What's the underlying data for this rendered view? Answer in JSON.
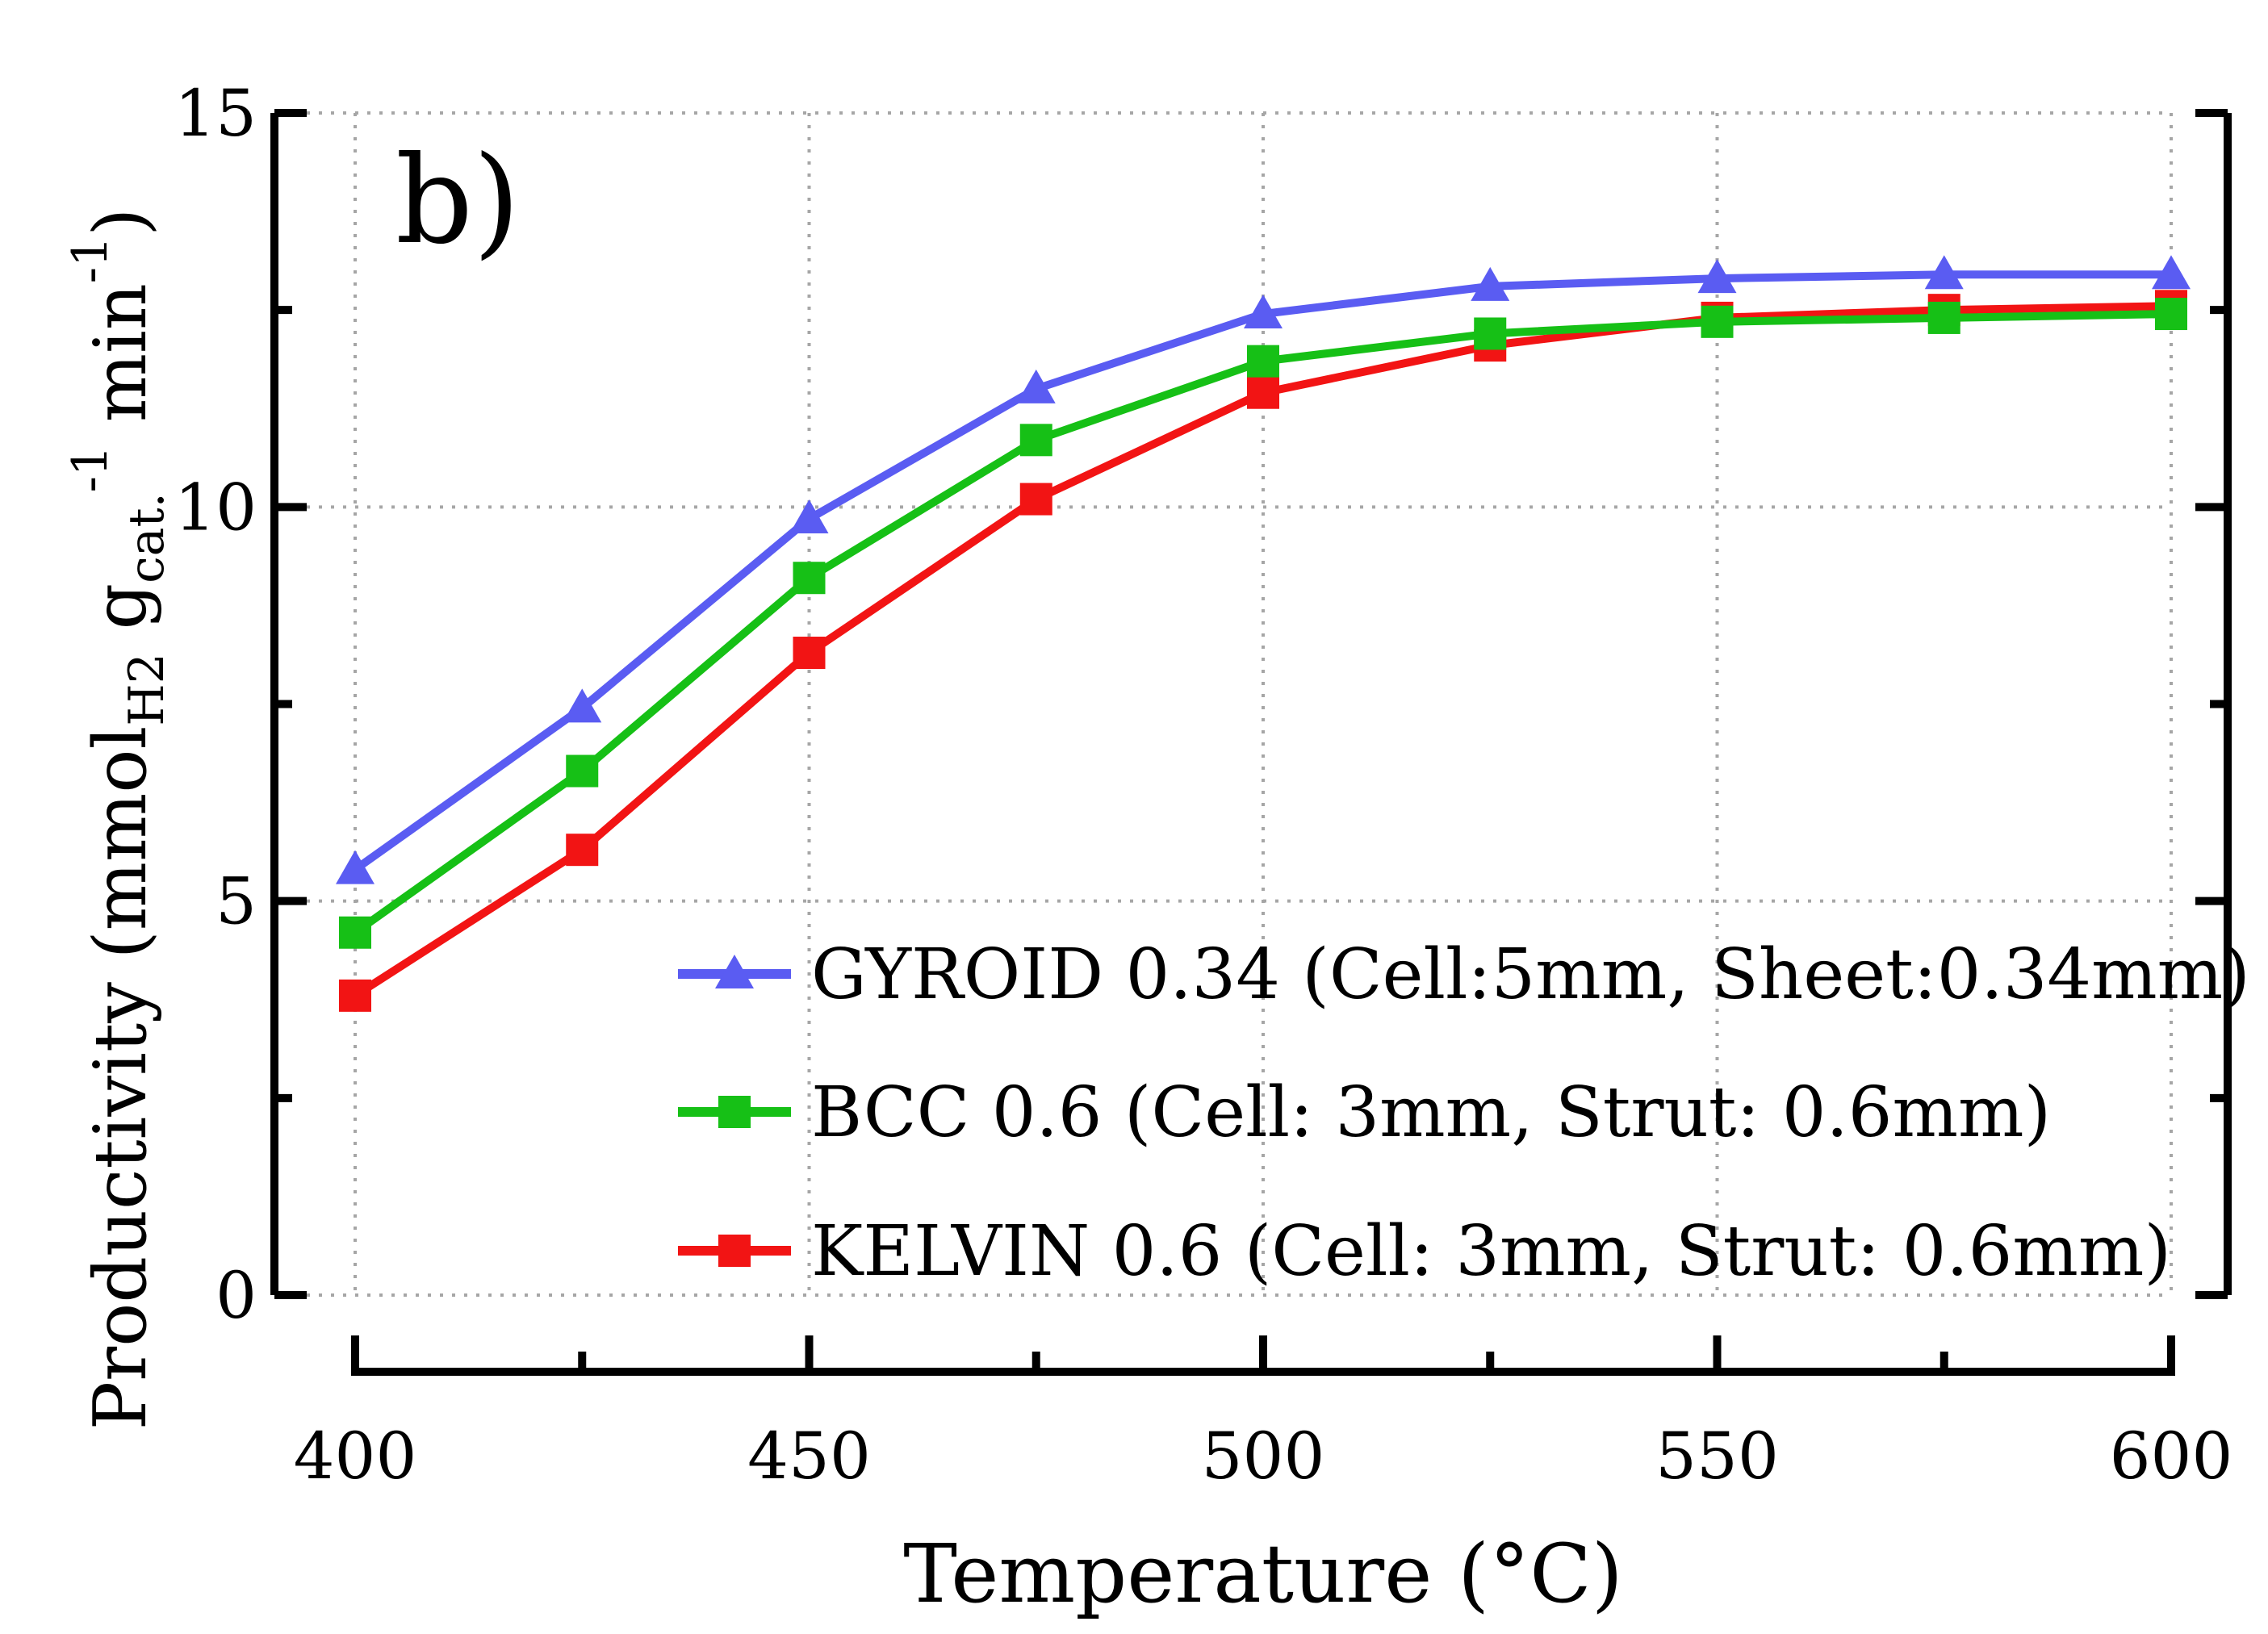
{
  "panel_label": "b)",
  "colors": {
    "axis": "#000000",
    "grid": "#a6a6a6",
    "gyroid": "#5a5cf2",
    "bcc": "#16c016",
    "kelvin": "#f21414"
  },
  "chart_data": {
    "type": "line",
    "title": "",
    "xlabel": "Temperature (°C)",
    "ylabel": {
      "base": "Productivity (mmol",
      "sub1": "H2",
      "mid": " g",
      "sub2": "cat.",
      "sup1": "-1",
      "mid2": " min",
      "sup2": "-1",
      "close": ")"
    },
    "xlim": [
      400,
      600
    ],
    "ylim": [
      0,
      15
    ],
    "xticks": [
      400,
      450,
      500,
      550,
      600
    ],
    "xtick_labels": [
      "400",
      "450",
      "500",
      "550",
      "600"
    ],
    "xminor": [
      425,
      475,
      525,
      575
    ],
    "yticks": [
      0,
      5,
      10,
      15
    ],
    "ytick_labels": [
      "0",
      "5",
      "10",
      "15"
    ],
    "yminor": [
      2.5,
      7.5,
      12.5
    ],
    "grid": true,
    "legend_position": "bottom-right",
    "x": [
      400,
      425,
      450,
      475,
      500,
      525,
      550,
      575,
      600
    ],
    "series": [
      {
        "key": "gyroid",
        "name": "GYROID 0.34 (Cell:5mm, Sheet:0.34mm)",
        "marker": "triangle",
        "values": [
          5.4,
          7.45,
          9.85,
          11.5,
          12.45,
          12.8,
          12.9,
          12.95,
          12.95
        ]
      },
      {
        "key": "bcc",
        "name": "BCC 0.6 (Cell: 3mm, Strut: 0.6mm)",
        "marker": "square",
        "values": [
          4.6,
          6.65,
          9.1,
          10.85,
          11.85,
          12.2,
          12.35,
          12.4,
          12.45
        ]
      },
      {
        "key": "kelvin",
        "name": "KELVIN 0.6 (Cell: 3mm, Strut: 0.6mm)",
        "marker": "square",
        "values": [
          3.8,
          5.65,
          8.15,
          10.1,
          11.45,
          12.05,
          12.4,
          12.5,
          12.55
        ]
      }
    ]
  }
}
